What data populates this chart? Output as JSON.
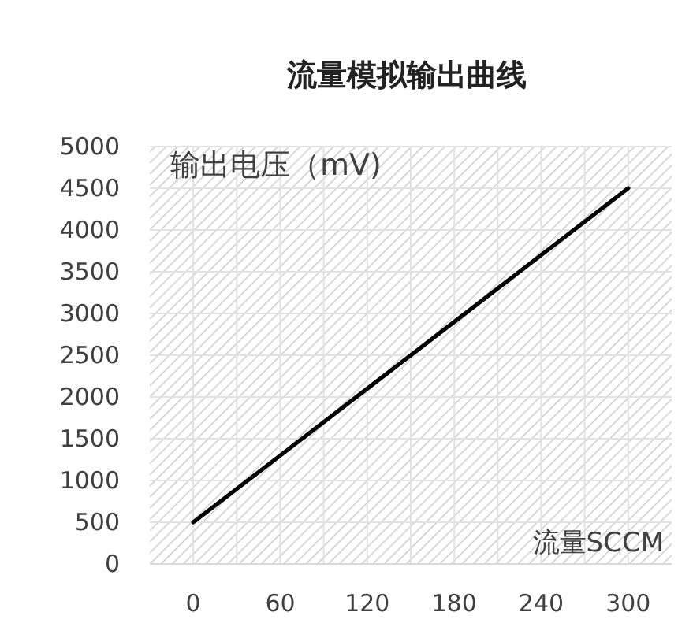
{
  "chart_data": {
    "type": "line",
    "title": "流量模拟输出曲线",
    "ylabel": "输出电压（mV)",
    "xlabel": "流量SCCM",
    "x": [
      0,
      60,
      120,
      180,
      240,
      300
    ],
    "series": [
      {
        "color": "#000000",
        "values": [
          500,
          1300,
          2100,
          2900,
          3700,
          4500
        ]
      }
    ],
    "xlim": [
      -30,
      330
    ],
    "xticks": [
      0,
      {
        "value": 30,
        "label": null
      },
      60,
      {
        "value": 90,
        "label": null
      },
      120,
      {
        "value": 150,
        "label": null
      },
      180,
      {
        "value": 210,
        "label": null
      },
      240,
      {
        "value": 270,
        "label": null
      },
      300
    ],
    "ylim": [
      0,
      5000
    ],
    "yticks": [
      0,
      500,
      1000,
      1500,
      2000,
      2500,
      3000,
      3500,
      4000,
      4500,
      5000
    ],
    "grid": true,
    "marker": "none",
    "line_style": "solid"
  }
}
